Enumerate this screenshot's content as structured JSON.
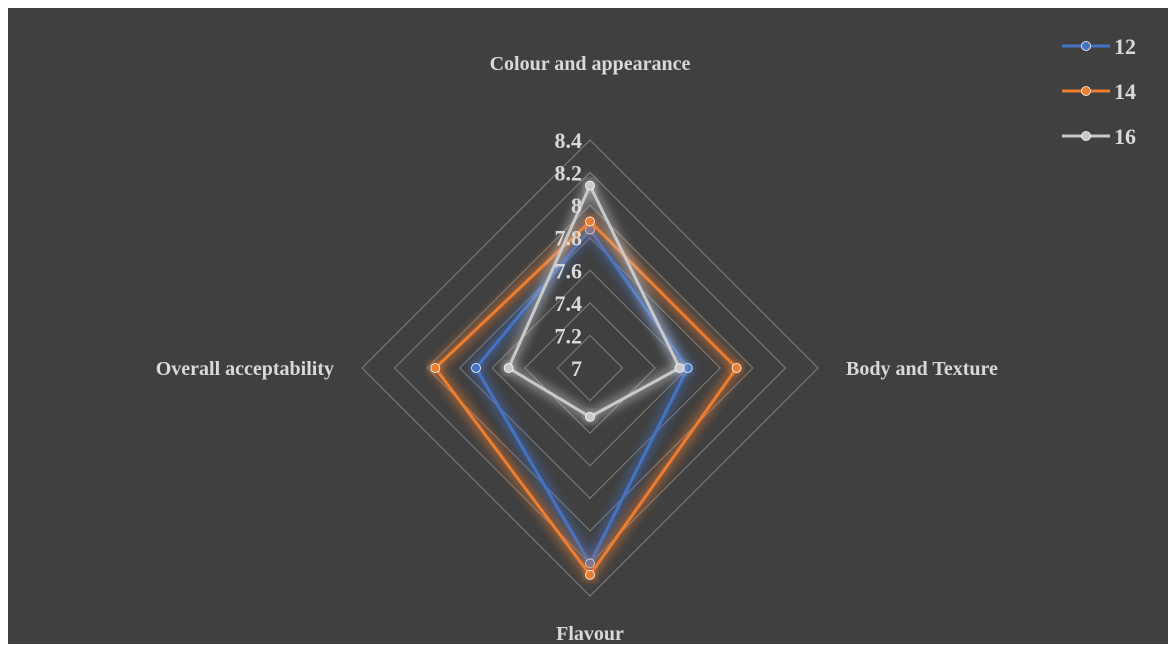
{
  "chart_data": {
    "type": "radar",
    "axes": [
      "Colour and appearance",
      "Body and Texture",
      "Flavour",
      "Overall acceptability"
    ],
    "rlim": [
      7,
      8.4
    ],
    "ticks": [
      "7",
      "7.2",
      "7.4",
      "7.6",
      "7.8",
      "8",
      "8.2",
      "8.4"
    ],
    "tick_values": [
      7,
      7.2,
      7.4,
      7.6,
      7.8,
      8,
      8.2,
      8.4
    ],
    "legend_position": "top-right",
    "series": [
      {
        "name": "12",
        "color": "#4472c4",
        "values": [
          7.85,
          7.6,
          8.2,
          7.7
        ]
      },
      {
        "name": "14",
        "color": "#ed7d31",
        "values": [
          7.9,
          7.9,
          8.27,
          7.95
        ]
      },
      {
        "name": "16",
        "color": "#c9c9c9",
        "values": [
          8.12,
          7.55,
          7.3,
          7.5
        ]
      }
    ]
  }
}
